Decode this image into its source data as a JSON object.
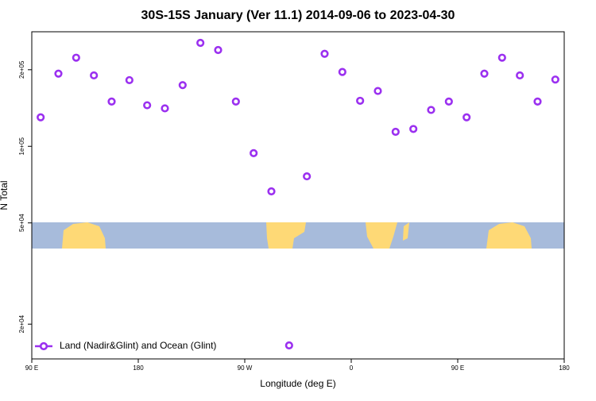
{
  "chart_data": {
    "type": "scatter",
    "title": "30S-15S January (Ver 11.1)   2014-09-06 to 2023-04-30",
    "x_label": "Longitude (deg E)",
    "y_label": "N Total",
    "log_y": true,
    "legend": "bottom-left",
    "xlim": [
      90,
      540
    ],
    "ylim": [
      14600,
      282000
    ],
    "xticks": [
      {
        "value": 90,
        "label": "90 E"
      },
      180,
      {
        "value": 270,
        "label": "90 W"
      },
      {
        "value": 360,
        "label": "0"
      },
      {
        "value": 450,
        "label": "90 E"
      },
      {
        "value": 540,
        "label": "180"
      }
    ],
    "yticks": [
      {
        "value": 20000,
        "label": "2e+04"
      },
      {
        "value": 50000,
        "label": "5e+04"
      },
      {
        "value": 100000,
        "label": "1e+05"
      },
      {
        "value": 200000,
        "label": "2e+05"
      }
    ],
    "x": [
      97.5,
      112.5,
      127.5,
      142.5,
      157.5,
      172.5,
      187.5,
      202.5,
      217.5,
      232.5,
      247.5,
      262.5,
      277.5,
      292.5,
      307.5,
      322.5,
      337.5,
      352.5,
      367.5,
      382.5,
      397.5,
      412.5,
      427.5,
      442.5,
      457.5,
      472.5,
      487.5,
      502.5,
      517.5,
      532.5
    ],
    "series": [
      {
        "name": "Land (Nadir&Glint) and Ocean (Glint)",
        "color": "#9b30f0",
        "values": [
          130000,
          193000,
          223000,
          190000,
          150000,
          182000,
          145000,
          141000,
          174000,
          255000,
          239000,
          150000,
          94000,
          66500,
          16500,
          76200,
          231000,
          196000,
          151000,
          165000,
          114000,
          117000,
          139000,
          150000,
          130000,
          193000,
          223000,
          190000,
          150000,
          183000
        ]
      }
    ]
  }
}
